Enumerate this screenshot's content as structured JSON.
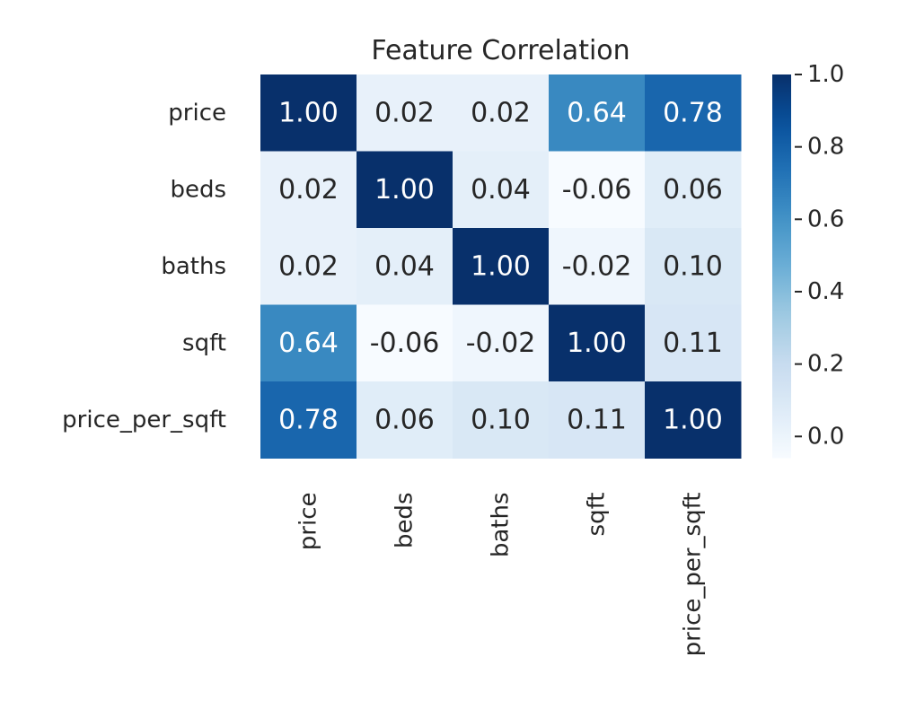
{
  "chart_data": {
    "type": "heatmap",
    "title": "Feature Correlation",
    "x_labels": [
      "price",
      "beds",
      "baths",
      "sqft",
      "price_per_sqft"
    ],
    "y_labels": [
      "price",
      "beds",
      "baths",
      "sqft",
      "price_per_sqft"
    ],
    "values": [
      [
        1.0,
        0.02,
        0.02,
        0.64,
        0.78
      ],
      [
        0.02,
        1.0,
        0.04,
        -0.06,
        0.06
      ],
      [
        0.02,
        0.04,
        1.0,
        -0.02,
        0.1
      ],
      [
        0.64,
        -0.06,
        -0.02,
        1.0,
        0.11
      ],
      [
        0.78,
        0.06,
        0.1,
        0.11,
        1.0
      ]
    ],
    "annotation_format": "0.00",
    "colormap": "Blues",
    "color_range": [
      -0.06,
      1.0
    ],
    "colorbar": {
      "ticks": [
        0.0,
        0.2,
        0.4,
        0.6,
        0.8,
        1.0
      ],
      "tick_labels": [
        "0.0",
        "0.2",
        "0.4",
        "0.6",
        "0.8",
        "1.0"
      ],
      "placement": "right"
    },
    "grid": false
  }
}
